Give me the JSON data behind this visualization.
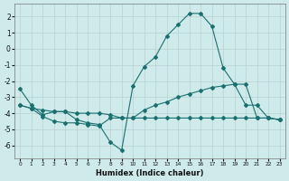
{
  "xlabel": "Humidex (Indice chaleur)",
  "background_color": "#ceeaea",
  "grid_color": "#b8d0d0",
  "line_color": "#1a7070",
  "xlim": [
    -0.5,
    23.5
  ],
  "ylim": [
    -6.8,
    2.8
  ],
  "yticks": [
    -6,
    -5,
    -4,
    -3,
    -2,
    -1,
    0,
    1,
    2
  ],
  "xticks": [
    0,
    1,
    2,
    3,
    4,
    5,
    6,
    7,
    8,
    9,
    10,
    11,
    12,
    13,
    14,
    15,
    16,
    17,
    18,
    19,
    20,
    21,
    22,
    23
  ],
  "curve1_x": [
    0,
    1,
    2,
    3,
    4,
    5,
    6,
    7,
    8,
    9,
    10,
    11,
    12,
    13,
    14,
    15,
    16,
    17,
    18,
    19,
    20,
    21,
    22,
    23
  ],
  "curve1_y": [
    -2.5,
    -3.5,
    -4.1,
    -3.9,
    -3.9,
    -4.4,
    -4.6,
    -4.7,
    -5.8,
    -6.3,
    -2.3,
    -1.1,
    -0.5,
    0.8,
    1.5,
    2.2,
    2.2,
    1.4,
    -1.2,
    -2.2,
    -3.5,
    -3.5,
    -4.3,
    -4.4
  ],
  "curve2_x": [
    0,
    1,
    2,
    3,
    4,
    5,
    6,
    7,
    8,
    9,
    10,
    11,
    12,
    13,
    14,
    15,
    16,
    17,
    18,
    19,
    20,
    21,
    22,
    23
  ],
  "curve2_y": [
    -3.5,
    -3.7,
    -3.8,
    -3.9,
    -3.9,
    -4.0,
    -4.0,
    -4.0,
    -4.1,
    -4.3,
    -4.3,
    -3.8,
    -3.5,
    -3.3,
    -3.0,
    -2.8,
    -2.6,
    -2.4,
    -2.3,
    -2.2,
    -2.2,
    -4.3,
    -4.3,
    -4.4
  ],
  "curve3_x": [
    0,
    1,
    2,
    3,
    4,
    5,
    6,
    7,
    8,
    9,
    10,
    11,
    12,
    13,
    14,
    15,
    16,
    17,
    18,
    19,
    20,
    21,
    22,
    23
  ],
  "curve3_y": [
    -3.5,
    -3.7,
    -4.2,
    -4.5,
    -4.6,
    -4.6,
    -4.7,
    -4.8,
    -4.3,
    -4.3,
    -4.3,
    -4.3,
    -4.3,
    -4.3,
    -4.3,
    -4.3,
    -4.3,
    -4.3,
    -4.3,
    -4.3,
    -4.3,
    -4.3,
    -4.3,
    -4.4
  ]
}
